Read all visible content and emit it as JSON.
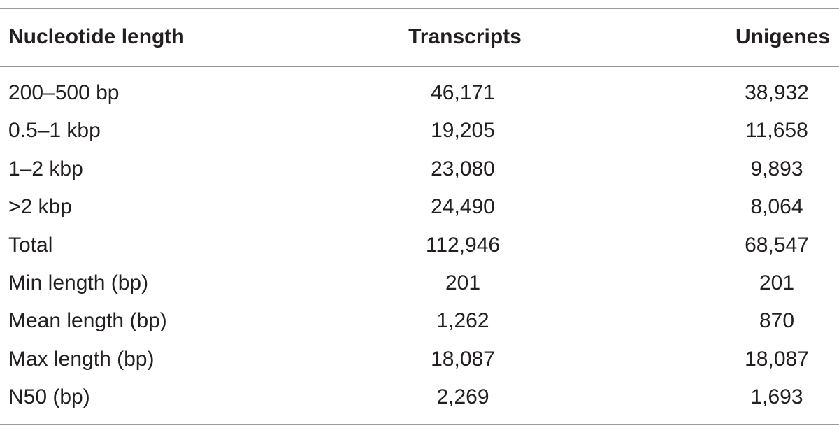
{
  "table": {
    "header": [
      "Nucleotide length",
      "Transcripts",
      "Unigenes"
    ],
    "rows": [
      [
        "200–500 bp",
        "46,171",
        "38,932"
      ],
      [
        "0.5–1 kbp",
        "19,205",
        "11,658"
      ],
      [
        "1–2 kbp",
        "23,080",
        "9,893"
      ],
      [
        ">2 kbp",
        "24,490",
        "8,064"
      ],
      [
        "Total",
        "112,946",
        "68,547"
      ],
      [
        "Min length (bp)",
        "201",
        "201"
      ],
      [
        "Mean length (bp)",
        "1,262",
        "870"
      ],
      [
        "Max length (bp)",
        "18,087",
        "18,087"
      ],
      [
        "N50 (bp)",
        "2,269",
        "1,693"
      ]
    ]
  }
}
